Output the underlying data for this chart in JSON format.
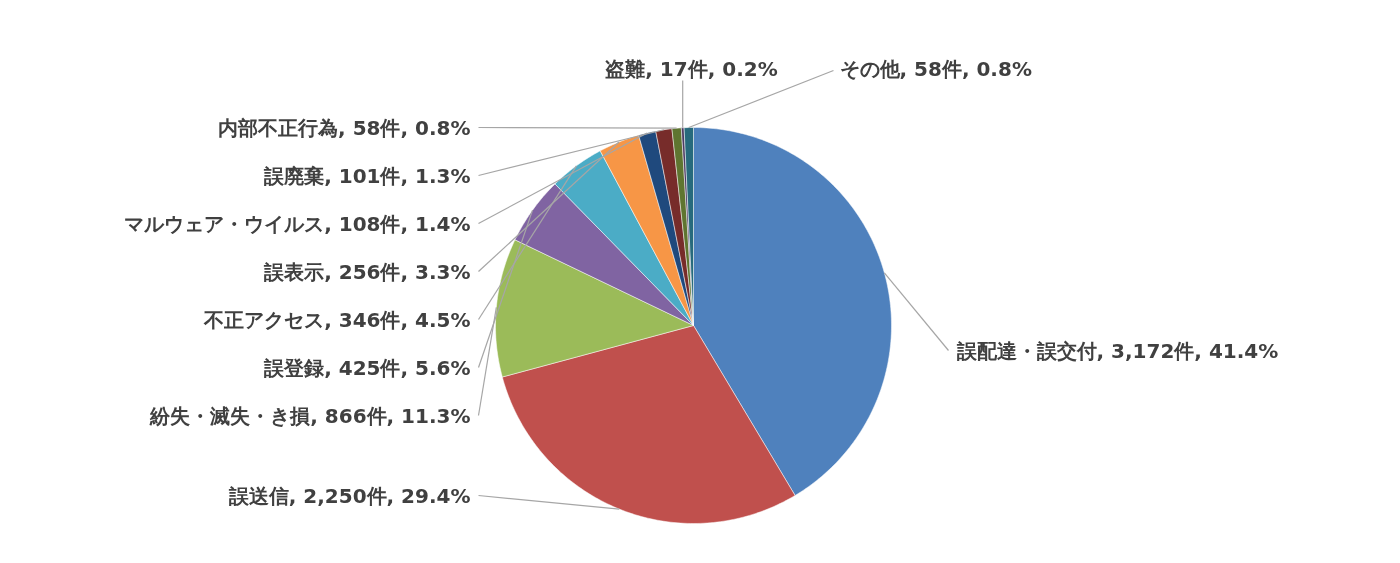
{
  "chart_data": {
    "type": "pie",
    "categories": [
      "誤配達・誤交付",
      "誤送信",
      "紛失・滅失・き損",
      "誤登録",
      "不正アクセス",
      "誤表示",
      "マルウェア・ウイルス",
      "誤廃棄",
      "内部不正行為",
      "盗難",
      "その他"
    ],
    "values": [
      3172,
      2250,
      866,
      425,
      346,
      256,
      108,
      101,
      58,
      17,
      58
    ],
    "value_labels": [
      "3,172件, 41.4%",
      "2,250件, 29.4%",
      "866件, 11.3%",
      "425件, 5.6%",
      "346件, 4.5%",
      "256件, 3.3%",
      "108件, 1.4%",
      "101件, 1.3%",
      "58件, 0.8%",
      "17件, 0.2%",
      "58件, 0.8%"
    ],
    "colors": [
      "#4f81bd",
      "#c0504d",
      "#9bbb59",
      "#8064a2",
      "#4bacc6",
      "#f79646",
      "#1f497d",
      "#772c2a",
      "#5f7530",
      "#4d3b62",
      "#276a7c"
    ]
  }
}
